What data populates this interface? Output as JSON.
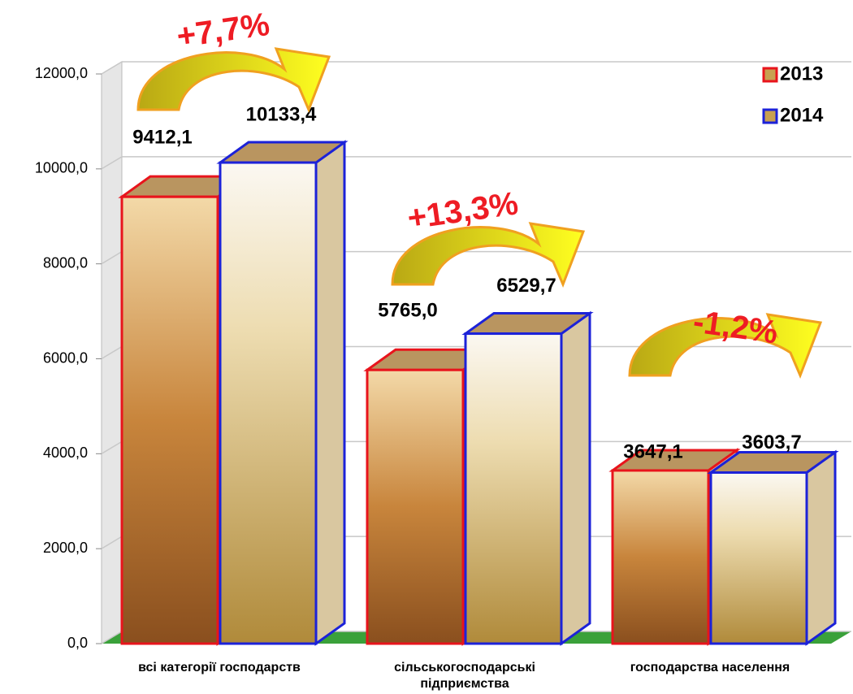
{
  "chart_data": {
    "type": "bar",
    "categories": [
      "всі категорії господарств",
      "сільськогосподарські підприємства",
      "господарства населення"
    ],
    "series": [
      {
        "name": "2013",
        "color": "#e8141c",
        "values": [
          9412.1,
          5765.0,
          3647.1
        ],
        "value_labels": [
          "9412,1",
          "5765,0",
          "3647,1"
        ]
      },
      {
        "name": "2014",
        "color": "#1c22d8",
        "values": [
          10133.4,
          6529.7,
          3603.7
        ],
        "value_labels": [
          "10133,4",
          "6529,7",
          "3603,7"
        ]
      }
    ],
    "ylim": [
      0,
      12000
    ],
    "yticks": [
      {
        "value": 0,
        "label": "0,0"
      },
      {
        "value": 2000,
        "label": "2000,0"
      },
      {
        "value": 4000,
        "label": "4000,0"
      },
      {
        "value": 6000,
        "label": "6000,0"
      },
      {
        "value": 8000,
        "label": "8000,0"
      },
      {
        "value": 10000,
        "label": "10000,0"
      },
      {
        "value": 12000,
        "label": "12000,0"
      }
    ],
    "grid": true,
    "legend": "top-right",
    "annotations": [
      "+7,7%",
      "+13,3%",
      "-1,2%"
    ]
  }
}
